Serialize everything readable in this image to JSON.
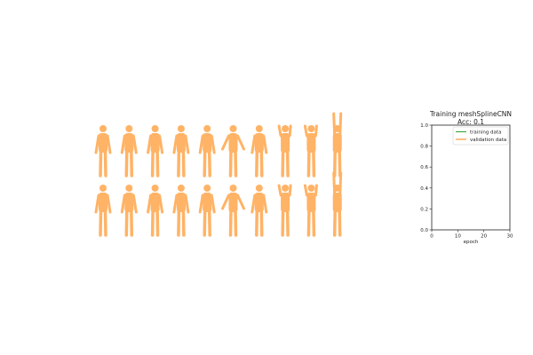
{
  "figures": {
    "fill_color": "#ffb366",
    "rows": 2,
    "columns": 10
  },
  "chart_data": {
    "type": "line",
    "title": "Training meshSplineCNN",
    "subtitle": "Acc: 0.1",
    "xlabel": "epoch",
    "ylabel": "",
    "xlim": [
      0,
      30
    ],
    "ylim": [
      0,
      1.0
    ],
    "xticks": [
      "0",
      "10",
      "20",
      "30"
    ],
    "yticks": [
      "0.0",
      "0.2",
      "0.4",
      "0.6",
      "0.8",
      "1.0"
    ],
    "grid": false,
    "legend_position": "top-right",
    "series": [
      {
        "name": "training data",
        "color": "#2ca02c",
        "x": [],
        "y": []
      },
      {
        "name": "validation data",
        "color": "#ff7f0e",
        "x": [],
        "y": []
      }
    ]
  }
}
